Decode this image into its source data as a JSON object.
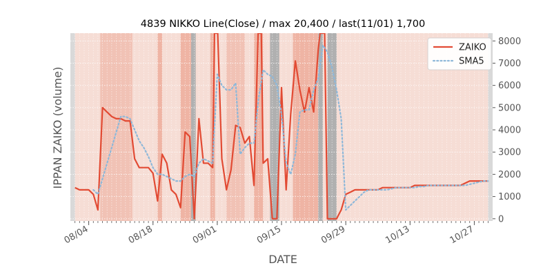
{
  "chart_data": {
    "type": "line",
    "title": "4839 NIKKO Line(Close) / max 20,400 / last(11/01) 1,700",
    "xlabel": "DATE",
    "ylabel": "IPPAN ZAIKO (volume)",
    "ylim": [
      -100,
      8350
    ],
    "x_ticks": [
      {
        "label": "08/04",
        "day": 3
      },
      {
        "label": "08/18",
        "day": 17
      },
      {
        "label": "09/01",
        "day": 31
      },
      {
        "label": "09/15",
        "day": 45
      },
      {
        "label": "09/29",
        "day": 59
      },
      {
        "label": "10/13",
        "day": 73
      },
      {
        "label": "10/27",
        "day": 87
      }
    ],
    "y_ticks": [
      0,
      1000,
      2000,
      3000,
      4000,
      5000,
      6000,
      7000,
      8000
    ],
    "legend": {
      "position": "top-right"
    },
    "grid": true,
    "series": [
      {
        "name": "ZAIKO",
        "color": "#e24a33",
        "style": "solid",
        "points": [
          [
            0,
            1400
          ],
          [
            1,
            1300
          ],
          [
            2,
            1300
          ],
          [
            3,
            1300
          ],
          [
            4,
            1100
          ],
          [
            5,
            400
          ],
          [
            6,
            5000
          ],
          [
            7,
            4800
          ],
          [
            8,
            4600
          ],
          [
            9,
            4500
          ],
          [
            10,
            4500
          ],
          [
            11,
            4400
          ],
          [
            12,
            4400
          ],
          [
            13,
            2700
          ],
          [
            14,
            2300
          ],
          [
            15,
            2300
          ],
          [
            16,
            2300
          ],
          [
            17,
            2050
          ],
          [
            18,
            800
          ],
          [
            19,
            2900
          ],
          [
            20,
            2500
          ],
          [
            21,
            1300
          ],
          [
            22,
            1100
          ],
          [
            23,
            500
          ],
          [
            24,
            3900
          ],
          [
            25,
            3700
          ],
          [
            26,
            0
          ],
          [
            27,
            4500
          ],
          [
            28,
            2500
          ],
          [
            29,
            2500
          ],
          [
            30,
            2300
          ],
          [
            30.4,
            8350
          ],
          [
            31.1,
            8350
          ],
          [
            32,
            2700
          ],
          [
            33,
            1300
          ],
          [
            34,
            2200
          ],
          [
            35,
            4200
          ],
          [
            36,
            4100
          ],
          [
            37,
            3400
          ],
          [
            38,
            3700
          ],
          [
            39,
            1500
          ],
          [
            39.9,
            8350
          ],
          [
            40.6,
            8350
          ],
          [
            41,
            2500
          ],
          [
            42,
            2700
          ],
          [
            43,
            0
          ],
          [
            44,
            0
          ],
          [
            45,
            5900
          ],
          [
            46,
            1300
          ],
          [
            47,
            4700
          ],
          [
            48,
            7100
          ],
          [
            49,
            5800
          ],
          [
            50,
            4800
          ],
          [
            51,
            5900
          ],
          [
            52,
            4800
          ],
          [
            53,
            7600
          ],
          [
            53.4,
            8350
          ],
          [
            54.4,
            8350
          ],
          [
            55,
            0
          ],
          [
            56,
            0
          ],
          [
            57,
            0
          ],
          [
            58,
            400
          ],
          [
            59,
            1100
          ],
          [
            60,
            1200
          ],
          [
            61,
            1300
          ],
          [
            62,
            1300
          ],
          [
            63,
            1300
          ],
          [
            64,
            1300
          ],
          [
            65,
            1300
          ],
          [
            66,
            1300
          ],
          [
            67,
            1400
          ],
          [
            68,
            1400
          ],
          [
            69,
            1400
          ],
          [
            70,
            1400
          ],
          [
            71,
            1400
          ],
          [
            72,
            1400
          ],
          [
            73,
            1400
          ],
          [
            74,
            1500
          ],
          [
            75,
            1500
          ],
          [
            76,
            1500
          ],
          [
            77,
            1500
          ],
          [
            78,
            1500
          ],
          [
            79,
            1500
          ],
          [
            80,
            1500
          ],
          [
            81,
            1500
          ],
          [
            82,
            1500
          ],
          [
            83,
            1500
          ],
          [
            84,
            1500
          ],
          [
            85,
            1600
          ],
          [
            86,
            1700
          ],
          [
            87,
            1700
          ],
          [
            88,
            1700
          ],
          [
            89,
            1700
          ],
          [
            90,
            1700
          ]
        ]
      },
      {
        "name": "SMA5",
        "color": "#8eb8d9",
        "style": "dotted",
        "points": [
          [
            4,
            1300
          ],
          [
            5,
            1100
          ],
          [
            6,
            1800
          ],
          [
            7,
            2500
          ],
          [
            8,
            3200
          ],
          [
            9,
            3900
          ],
          [
            10,
            4600
          ],
          [
            11,
            4600
          ],
          [
            12,
            4500
          ],
          [
            13,
            4000
          ],
          [
            14,
            3500
          ],
          [
            15,
            3200
          ],
          [
            16,
            2800
          ],
          [
            17,
            2300
          ],
          [
            18,
            2000
          ],
          [
            19,
            2000
          ],
          [
            20,
            1900
          ],
          [
            21,
            1800
          ],
          [
            22,
            1700
          ],
          [
            23,
            1700
          ],
          [
            24,
            1900
          ],
          [
            25,
            2000
          ],
          [
            26,
            1900
          ],
          [
            27,
            2500
          ],
          [
            28,
            2700
          ],
          [
            29,
            2600
          ],
          [
            30,
            2500
          ],
          [
            31,
            6500
          ],
          [
            32,
            6000
          ],
          [
            33,
            5800
          ],
          [
            34,
            5800
          ],
          [
            35,
            6100
          ],
          [
            36,
            2900
          ],
          [
            37,
            3200
          ],
          [
            38,
            3400
          ],
          [
            39,
            3400
          ],
          [
            40,
            5400
          ],
          [
            41,
            6700
          ],
          [
            42,
            6500
          ],
          [
            43,
            6400
          ],
          [
            44,
            6000
          ],
          [
            45,
            4700
          ],
          [
            46,
            2500
          ],
          [
            47,
            2000
          ],
          [
            48,
            2900
          ],
          [
            49,
            4800
          ],
          [
            50,
            4900
          ],
          [
            51,
            4900
          ],
          [
            52,
            5800
          ],
          [
            53,
            6300
          ],
          [
            54,
            7800
          ],
          [
            55,
            7500
          ],
          [
            56,
            6800
          ],
          [
            57,
            5800
          ],
          [
            58,
            4500
          ],
          [
            59,
            400
          ],
          [
            60,
            600
          ],
          [
            61,
            800
          ],
          [
            62,
            1000
          ],
          [
            63,
            1200
          ],
          [
            64,
            1300
          ],
          [
            65,
            1300
          ],
          [
            66,
            1300
          ],
          [
            67,
            1300
          ],
          [
            68,
            1300
          ],
          [
            69,
            1350
          ],
          [
            70,
            1400
          ],
          [
            71,
            1400
          ],
          [
            72,
            1400
          ],
          [
            73,
            1400
          ],
          [
            74,
            1400
          ],
          [
            75,
            1450
          ],
          [
            76,
            1450
          ],
          [
            77,
            1500
          ],
          [
            78,
            1500
          ],
          [
            79,
            1500
          ],
          [
            80,
            1500
          ],
          [
            81,
            1500
          ],
          [
            82,
            1500
          ],
          [
            83,
            1500
          ],
          [
            84,
            1500
          ],
          [
            85,
            1500
          ],
          [
            86,
            1550
          ],
          [
            87,
            1600
          ],
          [
            88,
            1650
          ],
          [
            89,
            1700
          ],
          [
            90,
            1700
          ]
        ]
      }
    ],
    "day_range": [
      -1,
      91
    ],
    "shading": {
      "base_color": "#f6ddd5",
      "bands": [
        {
          "from": -1,
          "to": 0,
          "color": "#d9d9d9"
        },
        {
          "from": 5.5,
          "to": 12.5,
          "color": "#f1c2b5"
        },
        {
          "from": 18,
          "to": 19,
          "color": "#efb4a4"
        },
        {
          "from": 23,
          "to": 26,
          "color": "#efb4a4"
        },
        {
          "from": 25.3,
          "to": 26.3,
          "color": "#b0b0b0"
        },
        {
          "from": 29.5,
          "to": 30.5,
          "color": "#efb4a4"
        },
        {
          "from": 33,
          "to": 37,
          "color": "#f1c2b5"
        },
        {
          "from": 39,
          "to": 41,
          "color": "#efb4a4"
        },
        {
          "from": 42.5,
          "to": 44.5,
          "color": "#b0b0b0"
        },
        {
          "from": 47.5,
          "to": 53,
          "color": "#efb4a4"
        },
        {
          "from": 53,
          "to": 54,
          "color": "#b0b0b0"
        },
        {
          "from": 55,
          "to": 57,
          "color": "#b0b0b0"
        },
        {
          "from": 90,
          "to": 91,
          "color": "#d9d9d9"
        }
      ]
    }
  }
}
